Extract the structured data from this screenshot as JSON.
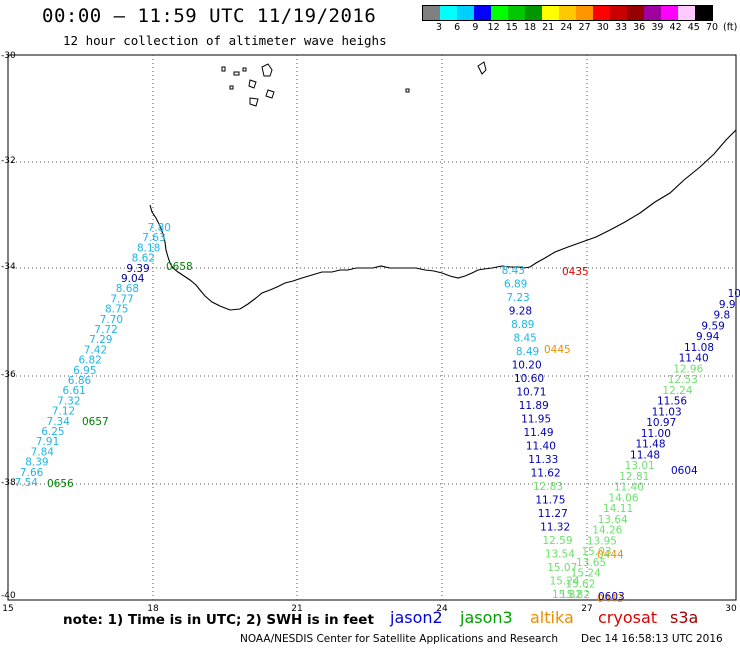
{
  "header": {
    "title": "00:00 – 11:59 UTC 11/19/2016",
    "subtitle": "12 hour collection of altimeter wave heighs"
  },
  "colorbar": {
    "colors": [
      "#808080",
      "#00ffff",
      "#00d0ff",
      "#0000ff",
      "#00ff00",
      "#00c800",
      "#009600",
      "#ffff00",
      "#ffc800",
      "#ff9600",
      "#ff0000",
      "#c80000",
      "#960000",
      "#a000a0",
      "#ff00ff",
      "#ffc8ff",
      "#000000"
    ],
    "labels": [
      "3",
      "6",
      "9",
      "12",
      "15",
      "18",
      "21",
      "24",
      "27",
      "30",
      "33",
      "36",
      "39",
      "42",
      "45",
      "70",
      "(ft)"
    ]
  },
  "axes": {
    "lat_labels": [
      "-30",
      "-32",
      "-34",
      "-36",
      "-38",
      "-40"
    ],
    "lon_labels": [
      "15",
      "18",
      "21",
      "24",
      "27",
      "30"
    ]
  },
  "tracks": [
    {
      "satellite": "jason3",
      "color": "#1fb6e6",
      "values": [
        "7.80",
        "7.63",
        "8.18",
        "8.62",
        "9.39",
        "9.04",
        "8.68",
        "7.77",
        "8.75",
        "7.70",
        "7.72",
        "7.29",
        "7.42",
        "6.82",
        "6.95",
        "6.86",
        "6.61",
        "7.32",
        "7.12",
        "7.34",
        "6.25",
        "7.91",
        "7.84",
        "8.39",
        "7.66",
        "7.54"
      ],
      "dark_values": [
        "9.39",
        "9.04"
      ],
      "times": [
        {
          "t": "0658",
          "color": "#008000"
        },
        {
          "t": "0657",
          "color": "#008000"
        },
        {
          "t": "0656",
          "color": "#008000"
        }
      ]
    },
    {
      "satellite": "jason2",
      "color": "#1fb6e6",
      "values": [
        "8.43",
        "6.89",
        "7.23",
        "9.28",
        "8.89",
        "8.45",
        "8.49",
        "10.20",
        "10.60",
        "10.71",
        "11.89",
        "11.95",
        "11.49",
        "11.40",
        "11.33",
        "11.62",
        "12.83",
        "11.75",
        "11.27",
        "11.32",
        "12.59",
        "13.54",
        "15.07",
        "15.24",
        "15.82"
      ],
      "times": [
        {
          "t": "0435",
          "color": "#e00000"
        },
        {
          "t": "0445",
          "color": "#f08c00"
        },
        {
          "t": "0444",
          "color": "#f08c00"
        },
        {
          "t": "0443",
          "color": "#f08c00"
        }
      ]
    },
    {
      "satellite": "jason2-b",
      "values": [
        "10",
        "9.9",
        "9.8",
        "9.59",
        "9.94",
        "11.08",
        "11.40",
        "12.96",
        "12.53",
        "12.24",
        "11.56",
        "11.03",
        "10.97",
        "11.00",
        "11.48",
        "11.48",
        "13.01",
        "12.81",
        "11.40",
        "14.06",
        "14.11",
        "13.64",
        "14.26",
        "13.95",
        "15.03",
        "13.65",
        "15.24",
        "15.62",
        "15.82"
      ],
      "times": [
        {
          "t": "0604",
          "color": "#0000c0"
        },
        {
          "t": "0603",
          "color": "#0000c0"
        }
      ]
    }
  ],
  "footer": {
    "note": "note: 1) Time is in UTC; 2) SWH is in feet",
    "legend": [
      {
        "name": "jason2",
        "color": "#0000e0"
      },
      {
        "name": "jason3",
        "color": "#00a000"
      },
      {
        "name": "altika",
        "color": "#f08c00"
      },
      {
        "name": "cryosat",
        "color": "#e00000"
      },
      {
        "name": "s3a",
        "color": "#a00000"
      }
    ],
    "credit": "NOAA/NESDIS Center for Satellite Applications and Research",
    "timestamp": "Dec 14 16:58:13 UTC 2016"
  }
}
